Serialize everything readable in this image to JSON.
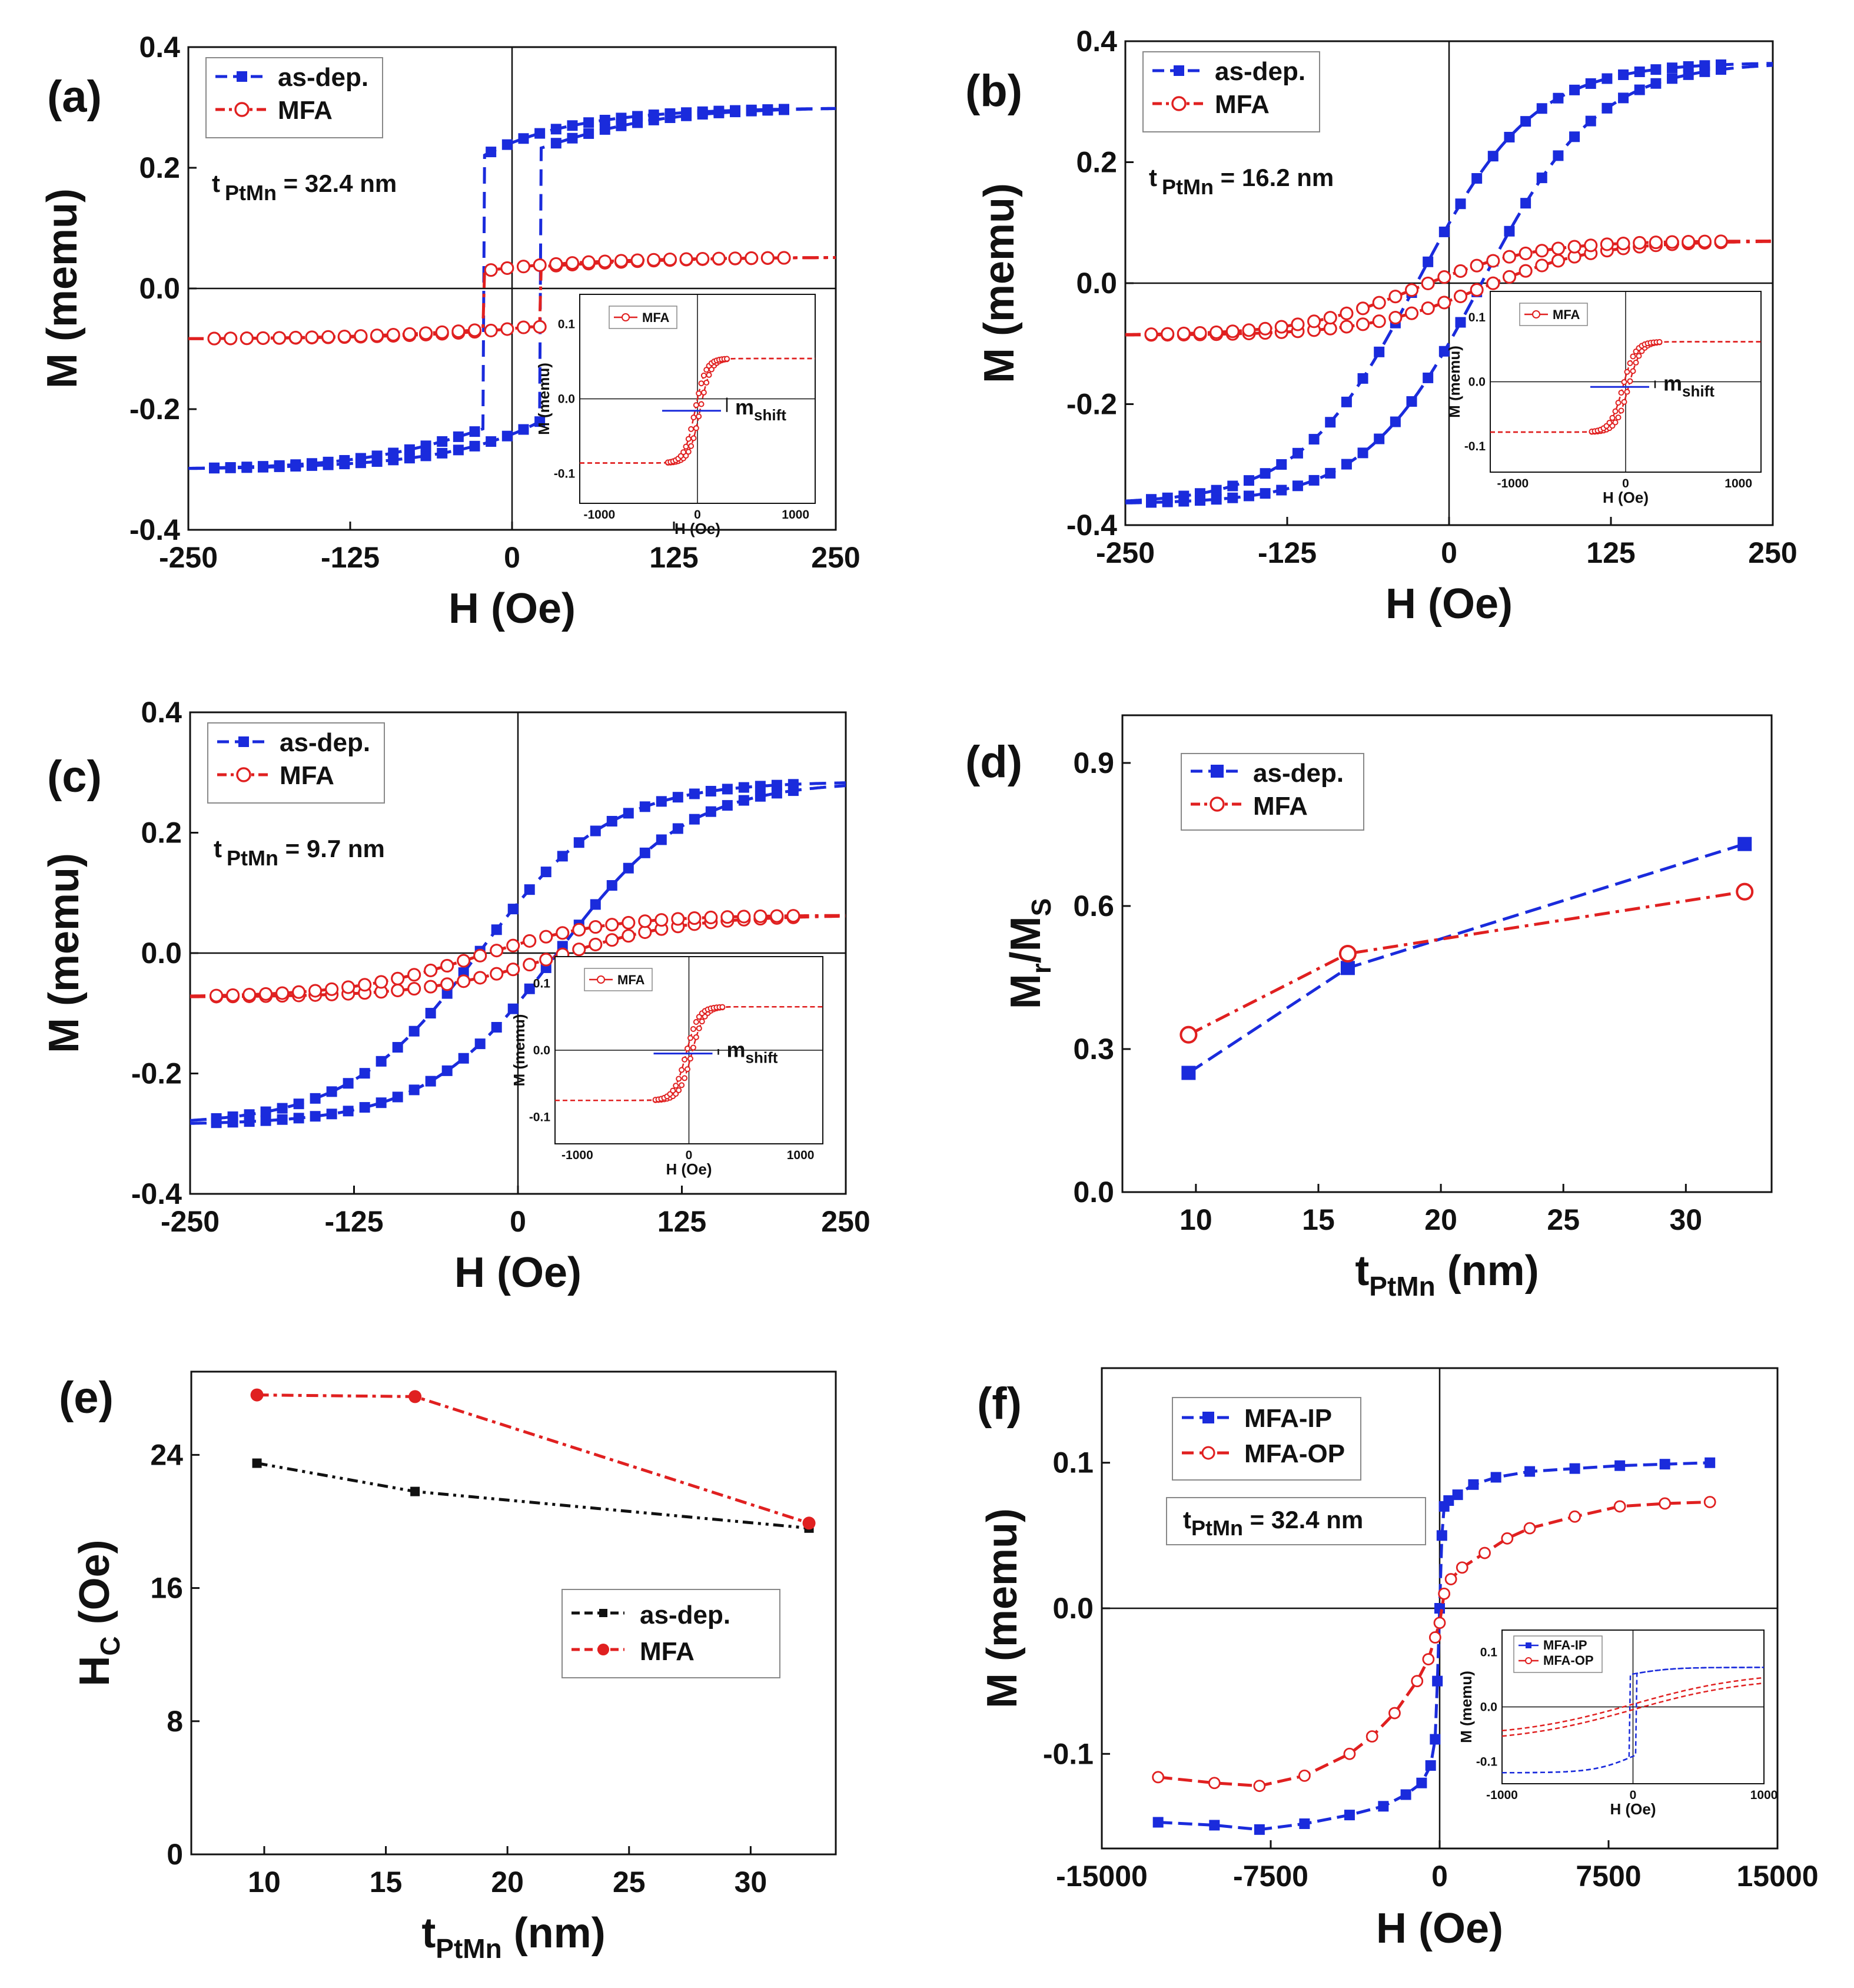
{
  "figure": {
    "colors": {
      "blue": "#1a2bdc",
      "red": "#e02020",
      "black": "#111111"
    }
  },
  "chart_data": [
    {
      "id": "a",
      "panel_label": "(a)",
      "type": "line",
      "xlabel": "H (Oe)",
      "ylabel": "M (memu)",
      "xlim": [
        -250,
        250
      ],
      "ylim": [
        -0.4,
        0.4
      ],
      "xticks": [
        "-250",
        "-125",
        "0",
        "125",
        "250"
      ],
      "yticks": [
        "-0.4",
        "-0.2",
        "0.0",
        "0.2",
        "0.4"
      ],
      "annotation": {
        "prefix": "t",
        "sub": "PtMn",
        "suffix": " = 32.4 nm"
      },
      "legend": {
        "position": "top-left",
        "entries": [
          "as-dep.",
          "MFA"
        ]
      },
      "loop_params": {
        "as-dep.": {
          "Ms": 0.3,
          "Hc": 22,
          "Mr": 0.22,
          "w": 70,
          "sharp": true
        },
        "MFA": {
          "Ms": 0.068,
          "Hc": 22,
          "Mr": 0.045,
          "w": 80,
          "shift": -0.016,
          "sharp": true
        }
      },
      "inset": {
        "series_name": "MFA",
        "xlim": [
          -1200,
          1200
        ],
        "ylim": [
          -0.14,
          0.14
        ],
        "xticks": [
          "-1000",
          "0",
          "1000"
        ],
        "yticks": [
          "-0.1",
          "0.0",
          "0.1"
        ],
        "xlabel": "H (Oe)",
        "ylabel": "M (memu)",
        "marker": {
          "main": "m",
          "sub": "shift"
        }
      }
    },
    {
      "id": "b",
      "panel_label": "(b)",
      "type": "line",
      "xlabel": "H (Oe)",
      "ylabel": "M (memu)",
      "xlim": [
        -250,
        250
      ],
      "ylim": [
        -0.4,
        0.4
      ],
      "xticks": [
        "-250",
        "-125",
        "0",
        "125",
        "250"
      ],
      "yticks": [
        "-0.4",
        "-0.2",
        "0.0",
        "0.2",
        "0.4"
      ],
      "annotation": {
        "prefix": "t",
        "sub": "PtMn",
        "suffix": " = 16.2 nm"
      },
      "legend": {
        "position": "top-left",
        "entries": [
          "as-dep.",
          "MFA"
        ]
      },
      "loop_params": {
        "as-dep.": {
          "Ms": 0.365,
          "Hc": 25,
          "Mr": 0.17,
          "w": 90,
          "sharp": false
        },
        "MFA": {
          "Ms": 0.078,
          "Hc": 25,
          "Mr": 0.04,
          "w": 90,
          "shift": -0.008,
          "sharp": false
        }
      },
      "inset": {
        "series_name": "MFA",
        "xlim": [
          -1200,
          1200
        ],
        "ylim": [
          -0.14,
          0.14
        ],
        "xticks": [
          "-1000",
          "0",
          "1000"
        ],
        "yticks": [
          "-0.1",
          "0.0",
          "0.1"
        ],
        "xlabel": "H (Oe)",
        "ylabel": "M (memu)",
        "marker": {
          "main": "m",
          "sub": "shift"
        }
      }
    },
    {
      "id": "c",
      "panel_label": "(c)",
      "type": "line",
      "xlabel": "H (Oe)",
      "ylabel": "M (memu)",
      "xlim": [
        -250,
        250
      ],
      "ylim": [
        -0.4,
        0.4
      ],
      "xticks": [
        "-250",
        "-125",
        "0",
        "125",
        "250"
      ],
      "yticks": [
        "-0.4",
        "-0.2",
        "0.0",
        "0.2",
        "0.4"
      ],
      "annotation": {
        "prefix": "t",
        "sub": "PtMn",
        "suffix": " = 9.7 nm"
      },
      "legend": {
        "position": "top-left",
        "entries": [
          "as-dep.",
          "MFA"
        ]
      },
      "loop_params": {
        "as-dep.": {
          "Ms": 0.285,
          "Hc": 30,
          "Mr": 0.07,
          "w": 100,
          "sharp": false
        },
        "MFA": {
          "Ms": 0.068,
          "Hc": 30,
          "Mr": 0.022,
          "w": 100,
          "shift": -0.005,
          "sharp": false
        }
      },
      "inset": {
        "series_name": "MFA",
        "xlim": [
          -1200,
          1200
        ],
        "ylim": [
          -0.14,
          0.14
        ],
        "xticks": [
          "-1000",
          "0",
          "1000"
        ],
        "yticks": [
          "-0.1",
          "0.0",
          "0.1"
        ],
        "xlabel": "H (Oe)",
        "ylabel": "M (memu)",
        "marker": {
          "main": "m",
          "sub": "shift"
        }
      }
    },
    {
      "id": "d",
      "panel_label": "(d)",
      "type": "line",
      "xlabel": {
        "main": "t",
        "sub": "PtMn",
        "suffix": " (nm)"
      },
      "ylabel": {
        "main": "M",
        "sub1": "r",
        "mid": "/M",
        "sub2": "S"
      },
      "xlim": [
        7,
        33.5
      ],
      "ylim": [
        0,
        1.0
      ],
      "xticks": [
        "10",
        "15",
        "20",
        "25",
        "30"
      ],
      "yticks": [
        "0.0",
        "0.3",
        "0.6",
        "0.9"
      ],
      "legend": {
        "position": "top-left",
        "entries": [
          "as-dep.",
          "MFA"
        ]
      },
      "x": [
        9.7,
        16.2,
        32.4
      ],
      "series": [
        {
          "name": "as-dep.",
          "values": [
            0.25,
            0.47,
            0.73
          ]
        },
        {
          "name": "MFA",
          "values": [
            0.33,
            0.5,
            0.63
          ]
        }
      ]
    },
    {
      "id": "e",
      "panel_label": "(e)",
      "type": "line",
      "xlabel": {
        "main": "t",
        "sub": "PtMn",
        "suffix": " (nm)"
      },
      "ylabel": {
        "main": "H",
        "sub": "C",
        "suffix": " (Oe)"
      },
      "xlim": [
        7,
        33.5
      ],
      "ylim": [
        0,
        29
      ],
      "xticks": [
        "10",
        "15",
        "20",
        "25",
        "30"
      ],
      "yticks": [
        "0",
        "8",
        "16",
        "24"
      ],
      "legend": {
        "position": "center-right",
        "entries": [
          "as-dep.",
          "MFA"
        ]
      },
      "x": [
        9.7,
        16.2,
        32.4
      ],
      "series": [
        {
          "name": "as-dep.",
          "values": [
            23.5,
            21.8,
            19.6
          ]
        },
        {
          "name": "MFA",
          "values": [
            27.6,
            27.5,
            19.9
          ]
        }
      ]
    },
    {
      "id": "f",
      "panel_label": "(f)",
      "type": "line",
      "xlabel": "H (Oe)",
      "ylabel": "M (memu)",
      "xlim": [
        -15000,
        15000
      ],
      "ylim": [
        -0.165,
        0.165
      ],
      "xticks": [
        "-15000",
        "-7500",
        "0",
        "7500",
        "15000"
      ],
      "yticks": [
        "-0.1",
        "0.0",
        "0.1"
      ],
      "annotation": {
        "prefix": "t",
        "sub": "PtMn",
        "suffix": " = 32.4 nm"
      },
      "legend": {
        "position": "top-left",
        "entries": [
          "MFA-IP",
          "MFA-OP"
        ]
      },
      "series": [
        {
          "name": "MFA-IP",
          "x": [
            -12500,
            -10000,
            -8000,
            -6000,
            -4000,
            -2500,
            -1500,
            -800,
            -400,
            -200,
            -100,
            0,
            100,
            200,
            400,
            800,
            1500,
            2500,
            4000,
            6000,
            8000,
            10000,
            12000
          ],
          "values": [
            -0.147,
            -0.149,
            -0.152,
            -0.148,
            -0.142,
            -0.136,
            -0.128,
            -0.12,
            -0.108,
            -0.09,
            -0.05,
            0.0,
            0.05,
            0.07,
            0.074,
            0.078,
            0.085,
            0.09,
            0.094,
            0.096,
            0.098,
            0.099,
            0.1
          ]
        },
        {
          "name": "MFA-OP",
          "x": [
            -12500,
            -10000,
            -8000,
            -6000,
            -4000,
            -3000,
            -2000,
            -1000,
            -500,
            -200,
            0,
            200,
            500,
            1000,
            2000,
            3000,
            4000,
            6000,
            8000,
            10000,
            12000
          ],
          "values": [
            -0.116,
            -0.12,
            -0.122,
            -0.115,
            -0.1,
            -0.088,
            -0.072,
            -0.05,
            -0.035,
            -0.02,
            -0.01,
            0.01,
            0.02,
            0.028,
            0.038,
            0.048,
            0.055,
            0.063,
            0.07,
            0.072,
            0.073
          ]
        }
      ],
      "inset": {
        "entries": [
          "MFA-IP",
          "MFA-OP"
        ],
        "xlim": [
          -1000,
          1000
        ],
        "ylim": [
          -0.14,
          0.14
        ],
        "xticks": [
          "-1000",
          "0",
          "1000"
        ],
        "yticks": [
          "-0.1",
          "0.0",
          "0.1"
        ],
        "xlabel": "H (Oe)",
        "ylabel": "M (memu)"
      }
    }
  ]
}
